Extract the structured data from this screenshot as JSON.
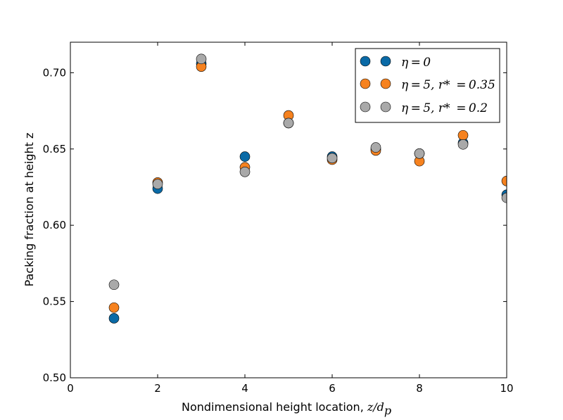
{
  "chart_data": {
    "type": "scatter",
    "title": "",
    "xlabel": "Nondimensional height location, ",
    "xlabel_math": "z/d",
    "xlabel_math_sub": "p",
    "ylabel": "Packing fraction at height z",
    "xlim": [
      0,
      10
    ],
    "ylim": [
      0.5,
      0.72
    ],
    "x_ticks": [
      0,
      2,
      4,
      6,
      8,
      10
    ],
    "x_tick_labels": [
      "0",
      "2",
      "4",
      "6",
      "8",
      "10"
    ],
    "y_ticks": [
      0.5,
      0.55,
      0.6,
      0.65,
      0.7
    ],
    "y_tick_labels": [
      "0.50",
      "0.55",
      "0.60",
      "0.65",
      "0.70"
    ],
    "grid": false,
    "legend_position": "top-right",
    "x": [
      1,
      2,
      3,
      4,
      5,
      6,
      7,
      8,
      9,
      10
    ],
    "series": [
      {
        "name": "η=0",
        "color": "#0a6aa6",
        "values": [
          0.539,
          0.624,
          0.706,
          0.645,
          0.667,
          0.645,
          0.65,
          0.647,
          0.654,
          0.62
        ]
      },
      {
        "name": "η=5, r* =0.35",
        "color": "#f6821f",
        "values": [
          0.546,
          0.628,
          0.704,
          0.638,
          0.672,
          0.643,
          0.649,
          0.642,
          0.659,
          0.629
        ]
      },
      {
        "name": "η=5, r* =0.2",
        "color": "#a9a9a9",
        "values": [
          0.561,
          0.627,
          0.709,
          0.635,
          0.667,
          0.644,
          0.651,
          0.647,
          0.653,
          0.618
        ]
      }
    ],
    "legend": [
      {
        "label": "η = 0"
      },
      {
        "label": "η = 5, r*  = 0.35"
      },
      {
        "label": "η = 5, r*  = 0.2"
      }
    ]
  }
}
